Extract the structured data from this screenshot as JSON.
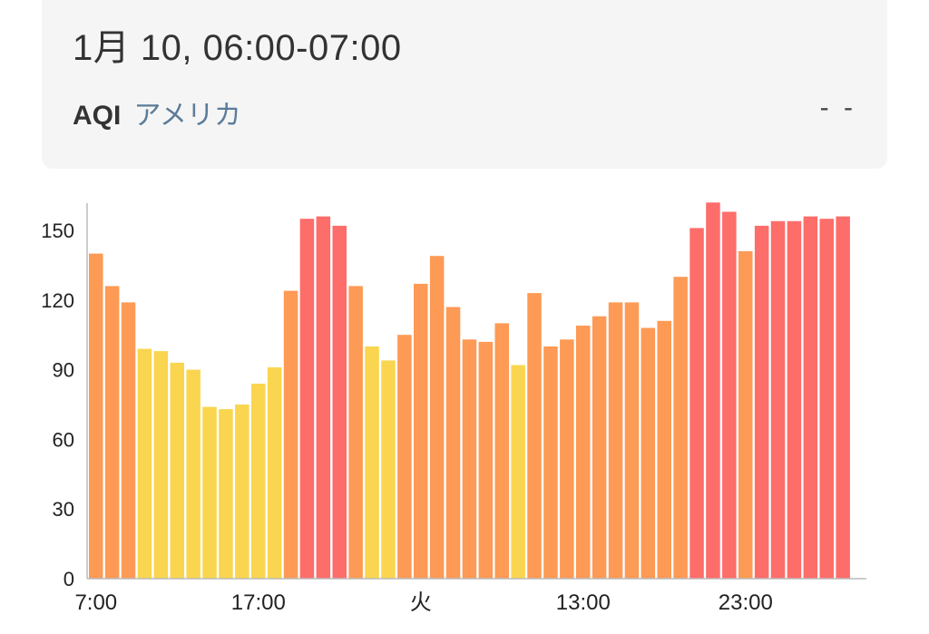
{
  "header": {
    "datetime": "1月 10, 06:00-07:00",
    "aqi_label": "AQI",
    "aqi_standard": "アメリカ",
    "aqi_value": "- -"
  },
  "colors": {
    "yellow": "#fad54f",
    "orange": "#fd9a55",
    "red": "#fd6d6a",
    "axis": "#bbbbbb",
    "text": "#222222"
  },
  "chart_data": {
    "type": "bar",
    "x_tick_labels": [
      "7:00",
      "17:00",
      "火",
      "13:00",
      "23:00"
    ],
    "x_tick_bar_index": [
      0,
      10,
      20,
      30,
      40
    ],
    "ylim": [
      0,
      160
    ],
    "y_ticks": [
      0,
      30,
      60,
      90,
      120,
      150
    ],
    "values": [
      140,
      126,
      119,
      99,
      98,
      93,
      90,
      74,
      73,
      75,
      84,
      91,
      124,
      155,
      156,
      152,
      126,
      100,
      94,
      105,
      127,
      139,
      117,
      103,
      102,
      110,
      92,
      123,
      100,
      103,
      109,
      113,
      119,
      119,
      108,
      111,
      130,
      151,
      162,
      158,
      141,
      152,
      154,
      154,
      156,
      155,
      156
    ],
    "categories_color": [
      "orange",
      "orange",
      "orange",
      "yellow",
      "yellow",
      "yellow",
      "yellow",
      "yellow",
      "yellow",
      "yellow",
      "yellow",
      "yellow",
      "orange",
      "red",
      "red",
      "red",
      "orange",
      "yellow",
      "yellow",
      "orange",
      "orange",
      "orange",
      "orange",
      "orange",
      "orange",
      "orange",
      "yellow",
      "orange",
      "orange",
      "orange",
      "orange",
      "orange",
      "orange",
      "orange",
      "orange",
      "orange",
      "orange",
      "red",
      "red",
      "red",
      "orange",
      "red",
      "red",
      "red",
      "red",
      "red",
      "red"
    ]
  }
}
